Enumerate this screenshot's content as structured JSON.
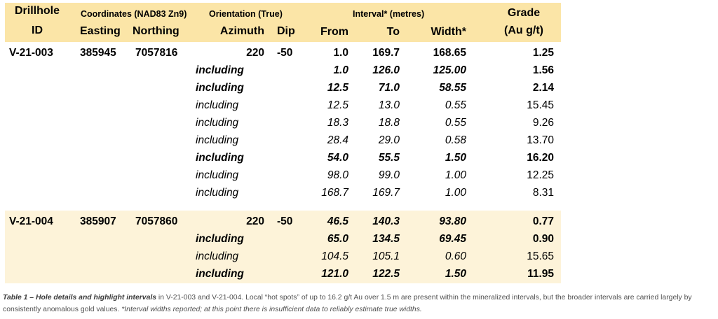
{
  "header": {
    "drillhole_l1": "Drillhole",
    "drillhole_l2": "ID",
    "coords_title": "Coordinates (NAD83 Zn9)",
    "easting": "Easting",
    "northing": "Northing",
    "orientation_title": "Orientation (True)",
    "azimuth": "Azimuth",
    "dip": "Dip",
    "interval_title": "Interval* (metres)",
    "from": "From",
    "to": "To",
    "width": "Width*",
    "grade_l1": "Grade",
    "grade_l2": "(Au g/t)"
  },
  "holes": [
    {
      "id": "V-21-003",
      "easting": "385945",
      "northing": "7057816",
      "azimuth": "220",
      "dip": "-50",
      "from": "1.0",
      "to": "169.7",
      "width": "168.65",
      "grade": "1.25",
      "including": [
        {
          "label": "including",
          "from": "1.0",
          "to": "126.0",
          "width": "125.00",
          "grade": "1.56",
          "style": "bold-italic"
        },
        {
          "label": "including",
          "from": "12.5",
          "to": "71.0",
          "width": "58.55",
          "grade": "2.14",
          "style": "bold-italic"
        },
        {
          "label": "including",
          "from": "12.5",
          "to": "13.0",
          "width": "0.55",
          "grade": "15.45",
          "style": "italic"
        },
        {
          "label": "including",
          "from": "18.3",
          "to": "18.8",
          "width": "0.55",
          "grade": "9.26",
          "style": "italic"
        },
        {
          "label": "including",
          "from": "28.4",
          "to": "29.0",
          "width": "0.58",
          "grade": "13.70",
          "style": "italic"
        },
        {
          "label": "including",
          "from": "54.0",
          "to": "55.5",
          "width": "1.50",
          "grade": "16.20",
          "style": "bold-italic"
        },
        {
          "label": "including",
          "from": "98.0",
          "to": "99.0",
          "width": "1.00",
          "grade": "12.25",
          "style": "italic"
        },
        {
          "label": "including",
          "from": "168.7",
          "to": "169.7",
          "width": "1.00",
          "grade": "8.31",
          "style": "italic"
        }
      ]
    },
    {
      "id": "V-21-004",
      "easting": "385907",
      "northing": "7057860",
      "azimuth": "220",
      "dip": "-50",
      "from": "46.5",
      "to": "140.3",
      "width": "93.80",
      "grade": "0.77",
      "including": [
        {
          "label": "including",
          "from": "65.0",
          "to": "134.5",
          "width": "69.45",
          "grade": "0.90",
          "style": "bold-italic"
        },
        {
          "label": "including",
          "from": "104.5",
          "to": "105.1",
          "width": "0.60",
          "grade": "15.65",
          "style": "italic"
        },
        {
          "label": "including",
          "from": "121.0",
          "to": "122.5",
          "width": "1.50",
          "grade": "11.95",
          "style": "bold-italic"
        }
      ]
    }
  ],
  "colors": {
    "header_bg": "#fbe5a7",
    "band_bg": "#fdf3d9",
    "caption_text": "#505050"
  },
  "caption": {
    "lead": "Table 1 – Hole details and highlight intervals",
    "body": " in V-21-003 and V-21-004. Local “hot spots” of up to 16.2 g/t Au over 1.5 m are present within the mineralized intervals, but the broader intervals are carried largely by consistently anomalous gold values. ",
    "tail": "*Interval widths reported; at this point there is insufficient data to reliably estimate true widths."
  }
}
